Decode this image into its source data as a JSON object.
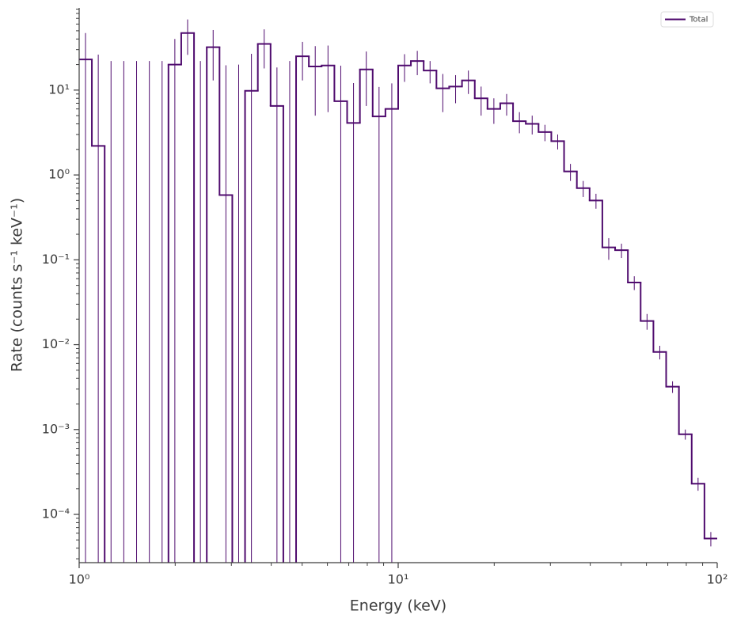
{
  "chart_data": {
    "type": "step_histogram",
    "xlabel": "Energy (keV)",
    "ylabel": "Rate (counts s⁻¹ keV⁻¹)",
    "xscale": "log",
    "yscale": "log",
    "xlim": [
      1,
      100
    ],
    "ylim": [
      2.7e-05,
      93
    ],
    "xticks": [
      {
        "value": 1,
        "label": "10⁰"
      },
      {
        "value": 10,
        "label": "10¹"
      },
      {
        "value": 100,
        "label": "10²"
      }
    ],
    "yticks": [
      {
        "value": 0.0001,
        "label": "10⁻⁴"
      },
      {
        "value": 0.001,
        "label": "10⁻³"
      },
      {
        "value": 0.01,
        "label": "10⁻²"
      },
      {
        "value": 0.1,
        "label": "10⁻¹"
      },
      {
        "value": 1,
        "label": "10⁰"
      },
      {
        "value": 10,
        "label": "10¹"
      }
    ],
    "legend": "upper right",
    "bins": [
      1,
      1.096,
      1.202,
      1.318,
      1.445,
      1.585,
      1.738,
      1.905,
      2.089,
      2.291,
      2.512,
      2.754,
      3.02,
      3.311,
      3.631,
      3.981,
      4.365,
      4.786,
      5.248,
      5.754,
      6.31,
      6.918,
      7.586,
      8.318,
      9.12,
      10,
      10.96,
      12.02,
      13.18,
      14.45,
      15.85,
      17.38,
      19.05,
      20.89,
      22.91,
      25.12,
      27.54,
      30.2,
      33.11,
      36.31,
      39.81,
      43.65,
      47.86,
      52.48,
      57.54,
      63.1,
      69.18,
      75.86,
      83.18,
      91.2,
      100
    ],
    "series": [
      {
        "name": "Total",
        "color": "#4f0b6e",
        "values": [
          23,
          2.2,
          0,
          0,
          0,
          0,
          0,
          20,
          47,
          0,
          32,
          0.58,
          0,
          9.8,
          35,
          6.5,
          0,
          25,
          19,
          19.5,
          7.4,
          4.1,
          17.5,
          4.9,
          6,
          19.5,
          22,
          17,
          10.5,
          11,
          13,
          8,
          6,
          7,
          4.3,
          4,
          3.2,
          2.5,
          1.1,
          0.7,
          0.5,
          0.14,
          0.13,
          0.054,
          0.019,
          0.0082,
          0.0032,
          0.00088,
          0.00023,
          5.2e-05
        ],
        "errors": [
          24,
          24,
          22,
          22,
          22,
          22,
          22,
          20,
          21,
          22,
          19,
          19,
          20,
          17,
          17,
          12,
          22,
          12,
          14,
          14,
          12,
          8,
          11,
          6,
          6,
          7,
          7,
          5,
          5,
          4,
          4,
          3,
          2,
          2,
          1.2,
          1,
          0.7,
          0.5,
          0.25,
          0.15,
          0.1,
          0.04,
          0.025,
          0.01,
          0.004,
          0.0015,
          0.0005,
          0.00012,
          4e-05,
          1e-05
        ]
      }
    ]
  }
}
